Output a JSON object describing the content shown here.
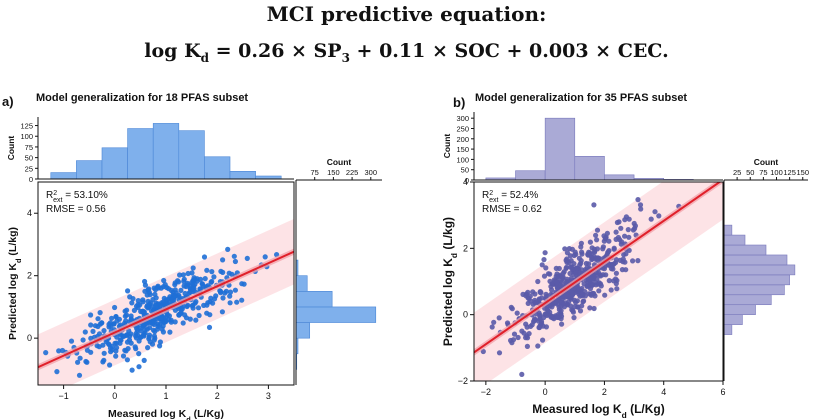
{
  "header": {
    "title": "MCI predictive equation:",
    "equation_lhs": "log K",
    "equation_lhs_sub": "d",
    "equation_rhs_1": " = 0.26 × SP",
    "equation_rhs_1_sub": "3",
    "equation_rhs_2": " + 0.11 × SOC + 0.003 × CEC."
  },
  "colors": {
    "panel_a_points": "#1f6fd6",
    "panel_a_hist": "#7fb0ec",
    "panel_b_points": "#5a5aa8",
    "panel_b_hist": "#aaaad6",
    "fit_line": "#e0202a",
    "ci_band": "#f2a0a8",
    "pi_band": "#fde0e3"
  },
  "chart_data": [
    {
      "panel_label": "a)",
      "title": "Model generalization for 18 PFAS subset",
      "type": "scatter",
      "xlabel_main": "Measured log K",
      "xlabel_sub": "d",
      "xlabel_tail": " (L/Kg)",
      "ylabel_main": "Predicted log K",
      "ylabel_sub": "d",
      "ylabel_tail": " (L/kg)",
      "xlim": [
        -1.5,
        3.5
      ],
      "ylim": [
        -1.5,
        5
      ],
      "xticks": [
        -1,
        0,
        1,
        2,
        3
      ],
      "yticks": [
        0,
        2,
        4
      ],
      "stat_r2_main": "R",
      "stat_r2_sup": "2",
      "stat_r2_sub": "ext",
      "stat_r2_value": " = 53.10%",
      "stat_rmse": "RMSE = 0.56",
      "fit": {
        "slope": 0.74,
        "intercept": 0.18
      },
      "pi_halfwidth": 1.05,
      "ci_halfwidth": 0.1,
      "top_hist": {
        "ylabel": "Count",
        "yticks": [
          0,
          25,
          50,
          75,
          100,
          125
        ],
        "ylim": [
          0,
          145
        ],
        "bin_edges": [
          -1.25,
          -0.75,
          -0.25,
          0.25,
          0.75,
          1.25,
          1.75,
          2.25,
          2.75,
          3.25
        ],
        "counts": [
          15,
          43,
          73,
          118,
          130,
          113,
          52,
          18,
          7
        ]
      },
      "right_hist": {
        "xlabel": "Count",
        "xticks": [
          75,
          150,
          225,
          300
        ],
        "xlim": [
          0,
          345
        ],
        "bin_edges": [
          -1.0,
          -0.5,
          0.0,
          0.5,
          1.0,
          1.5,
          2.0,
          2.5
        ],
        "counts": [
          3,
          8,
          55,
          320,
          145,
          45,
          8
        ]
      }
    },
    {
      "panel_label": "b)",
      "title": "Model generalization for 35 PFAS subset",
      "type": "scatter",
      "xlabel_main": "Measured log K",
      "xlabel_sub": "d",
      "xlabel_tail": " (L/Kg)",
      "ylabel_main": "Predicted log K",
      "ylabel_sub": "d",
      "ylabel_tail": " (L/kg)",
      "xlim": [
        -2.4,
        6
      ],
      "ylim": [
        -2,
        4
      ],
      "xticks": [
        -2,
        0,
        2,
        4,
        6
      ],
      "yticks": [
        -2,
        0,
        2,
        4
      ],
      "stat_r2_main": "R",
      "stat_r2_sup": "2",
      "stat_r2_sub": "ext",
      "stat_r2_value": " = 52.4%",
      "stat_rmse": "RMSE = 0.62",
      "fit": {
        "slope": 0.62,
        "intercept": 0.35
      },
      "pi_halfwidth": 1.2,
      "ci_halfwidth": 0.1,
      "top_hist": {
        "ylabel": "Count",
        "yticks": [
          0,
          50,
          100,
          150,
          200,
          250,
          300
        ],
        "ylim": [
          0,
          330
        ],
        "bin_edges": [
          -2,
          -1,
          0,
          1,
          2,
          3,
          4,
          5
        ],
        "counts": [
          10,
          45,
          300,
          115,
          25,
          8,
          3
        ]
      },
      "right_hist": {
        "xlabel": "Count",
        "xticks": [
          25,
          50,
          75,
          100,
          125,
          150
        ],
        "xlim": [
          0,
          160
        ],
        "bin_edges": [
          -0.6,
          -0.3,
          0.0,
          0.3,
          0.6,
          0.9,
          1.2,
          1.5,
          1.8,
          2.1,
          2.4,
          2.7
        ],
        "counts": [
          15,
          35,
          60,
          90,
          115,
          125,
          135,
          120,
          80,
          40,
          15
        ]
      }
    }
  ]
}
